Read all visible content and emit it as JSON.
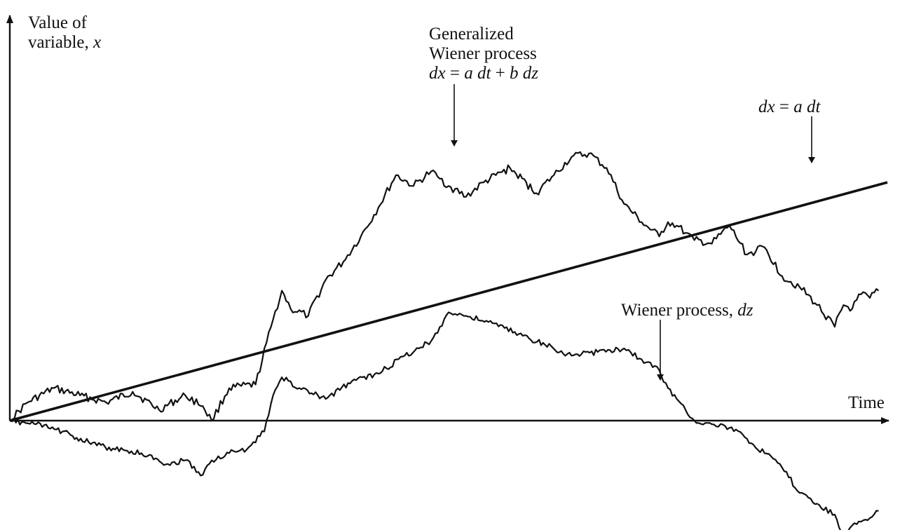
{
  "chart_data": {
    "type": "line",
    "title": "",
    "xlabel": "Time",
    "ylabel_lines": [
      "Value of",
      "variable, ",
      "x"
    ],
    "xlim": [
      0,
      100
    ],
    "ylim": [
      -30,
      100
    ],
    "grid": false,
    "series": [
      {
        "name": "dx = a dt",
        "x": [
          0,
          100
        ],
        "y": [
          0,
          66
        ]
      },
      {
        "name": "Generalized Wiener process dx = a dt + b dz",
        "x": [
          0,
          2,
          5,
          8,
          11,
          14,
          17,
          20,
          22,
          23,
          25,
          28,
          30,
          31,
          32,
          34,
          36,
          38,
          40,
          42,
          44,
          46,
          48,
          49,
          50,
          52,
          54,
          57,
          60,
          62,
          64,
          66,
          68,
          70,
          72,
          74,
          75,
          76,
          77,
          78,
          80,
          82,
          84,
          86,
          88,
          90,
          92,
          94,
          95,
          96,
          97,
          98,
          99
        ],
        "y": [
          0,
          5,
          9,
          7,
          5,
          8,
          3,
          7,
          4,
          0,
          9,
          10,
          28,
          36,
          31,
          29,
          39,
          44,
          51,
          59,
          68,
          65,
          69,
          67,
          65,
          62,
          66,
          70,
          63,
          68,
          73,
          74,
          70,
          60,
          55,
          51,
          55,
          54,
          52,
          50,
          49,
          54,
          46,
          48,
          40,
          37,
          32,
          26,
          32,
          31,
          35,
          34,
          36
        ]
      },
      {
        "name": "Wiener process, dz",
        "x": [
          0,
          3,
          6,
          9,
          12,
          15,
          18,
          20,
          22,
          23,
          25,
          27,
          29,
          30,
          31,
          33,
          36,
          39,
          42,
          45,
          48,
          50,
          52,
          55,
          58,
          61,
          64,
          67,
          70,
          72,
          74,
          75,
          76,
          77,
          78,
          80,
          82,
          84,
          86,
          88,
          90,
          92,
          94,
          95,
          96,
          97,
          98,
          99
        ],
        "y": [
          0,
          -1,
          -3,
          -6,
          -8,
          -9,
          -12,
          -11,
          -15,
          -11,
          -9,
          -8,
          -3,
          7,
          12,
          9,
          6,
          11,
          13,
          18,
          22,
          30,
          29,
          27,
          24,
          21,
          18,
          19,
          20,
          17,
          14,
          9,
          6,
          3,
          0,
          -1,
          -2,
          -5,
          -9,
          -13,
          -20,
          -23,
          -26,
          -32,
          -29,
          -28,
          -27,
          -25
        ]
      }
    ],
    "annotations": {
      "time_label": "Time",
      "y_axis_line1": "Value of",
      "y_axis_line2": "variable, ",
      "y_axis_var": "x",
      "generalized_line1": "Generalized",
      "generalized_line2": "Wiener process",
      "generalized_eq_dx": "dx",
      "generalized_eq_eq": " = ",
      "generalized_eq_a": "a",
      "generalized_eq_dt": "dt",
      "generalized_eq_plus": " + ",
      "generalized_eq_b": "b",
      "generalized_eq_dz": "dz",
      "drift_dx": "dx",
      "drift_eq": " = ",
      "drift_a": "a",
      "drift_dt": "dt",
      "wiener_text": "Wiener process, ",
      "wiener_dz": "dz"
    }
  }
}
